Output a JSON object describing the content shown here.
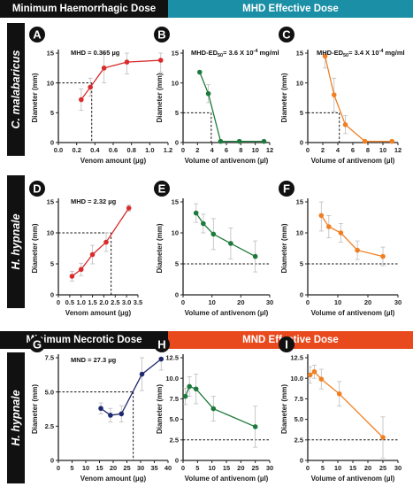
{
  "banners": {
    "top_left": "Minimum Haemorrhagic Dose",
    "top_right": "MHD Effective Dose",
    "mid_left": "Minimum Necrotic Dose",
    "mid_right": "MND Effective Dose"
  },
  "row_labels": {
    "row1": "C. malabaricus",
    "row2": "H. hypnale",
    "row3": "H. hypnale"
  },
  "colors": {
    "red": "#d92b2b",
    "green": "#1e7a3c",
    "orange": "#f07f23",
    "navy": "#1f2a6e",
    "teal": "#1a8fa6",
    "orange_red": "#e8491d",
    "black": "#111111"
  },
  "chart_data": [
    {
      "panel": "A",
      "type": "line",
      "color": "#d92b2b",
      "annotation": "MHD = 0.365 µg",
      "xlabel": "Venom amount (µg)",
      "ylabel": "Diameter (mm)",
      "xlim": [
        0,
        1.2
      ],
      "ylim": [
        0,
        15
      ],
      "xticks": [
        0,
        0.2,
        0.4,
        0.6,
        0.8,
        1.0,
        1.2
      ],
      "xticklabels": [
        "0.0",
        "0.2",
        "0.4",
        "0.6",
        "0.8",
        "1.0",
        "1.2"
      ],
      "yticks": [
        0,
        5,
        10,
        15
      ],
      "yticklabels": [
        "0",
        "5",
        "10",
        "15"
      ],
      "x": [
        0.25,
        0.35,
        0.5,
        0.75,
        1.12
      ],
      "y": [
        7.2,
        9.3,
        12.5,
        13.5,
        13.8
      ],
      "err": [
        1.8,
        1.5,
        2.5,
        2.0,
        2.0
      ],
      "ref": {
        "x": 0.365,
        "y": 10
      }
    },
    {
      "panel": "B",
      "type": "line",
      "color": "#1e7a3c",
      "annotation": "MHD-ED50= 3.6 X 10^-4 mg/ml",
      "xlabel": "Volume of antivenom (µl)",
      "ylabel": "Diameter (mm)",
      "xlim": [
        0,
        12
      ],
      "ylim": [
        0,
        15
      ],
      "xticks": [
        0,
        2,
        4,
        6,
        8,
        10,
        12
      ],
      "xticklabels": [
        "0",
        "2",
        "4",
        "6",
        "8",
        "10",
        "12"
      ],
      "yticks": [
        0,
        5,
        10,
        15
      ],
      "yticklabels": [
        "0",
        "5",
        "10",
        "15"
      ],
      "x": [
        2.3,
        3.5,
        5.2,
        7.8,
        11.2
      ],
      "y": [
        11.8,
        8.2,
        0.2,
        0.2,
        0.2
      ],
      "err": [
        0,
        1.5,
        0,
        0,
        0
      ],
      "ref": {
        "x": 3.9,
        "y": 5
      }
    },
    {
      "panel": "C",
      "type": "line",
      "color": "#f07f23",
      "annotation": "MHD-ED50= 3.4 X 10^-4 mg/ml",
      "xlabel": "Volume of antivenom (µl)",
      "ylabel": "Diameter (mm)",
      "xlim": [
        0,
        12
      ],
      "ylim": [
        0,
        15
      ],
      "xticks": [
        0,
        2,
        4,
        6,
        8,
        10,
        12
      ],
      "xticklabels": [
        "0",
        "2",
        "4",
        "6",
        "8",
        "10",
        "12"
      ],
      "yticks": [
        0,
        5,
        10,
        15
      ],
      "yticklabels": [
        "0",
        "5",
        "10",
        "15"
      ],
      "x": [
        2.3,
        3.5,
        5.0,
        7.6,
        11.2
      ],
      "y": [
        14.5,
        8.0,
        3.0,
        0.2,
        0.2
      ],
      "err": [
        2.0,
        2.8,
        1.5,
        0,
        0
      ],
      "ref": {
        "x": 4.2,
        "y": 5
      }
    },
    {
      "panel": "D",
      "type": "line",
      "color": "#d92b2b",
      "annotation": "MHD = 2.32 µg",
      "xlabel": "Venom amount (µg)",
      "ylabel": "Diameter (mm)",
      "xlim": [
        0,
        3.5
      ],
      "ylim": [
        0,
        15
      ],
      "xticks": [
        0,
        0.5,
        1.0,
        1.5,
        2.0,
        2.5,
        3.0,
        3.5
      ],
      "xticklabels": [
        "0",
        "0.5",
        "1.0",
        "1.5",
        "2.0",
        "2.5",
        "3.0",
        "3.5"
      ],
      "yticks": [
        0,
        5,
        10,
        15
      ],
      "yticklabels": [
        "0",
        "5",
        "10",
        "15"
      ],
      "x": [
        0.6,
        1.0,
        1.5,
        2.1,
        3.1
      ],
      "y": [
        3.0,
        4.1,
        6.5,
        8.5,
        14.0
      ],
      "err": [
        0.8,
        1.0,
        1.5,
        1.5,
        0.5
      ],
      "ref": {
        "x": 2.32,
        "y": 10
      }
    },
    {
      "panel": "E",
      "type": "line",
      "color": "#1e7a3c",
      "annotation": "",
      "xlabel": "Volume of antivenom (µl)",
      "ylabel": "Diameter (mm)",
      "xlim": [
        0,
        30
      ],
      "ylim": [
        0,
        15
      ],
      "xticks": [
        0,
        10,
        20,
        30
      ],
      "xticklabels": [
        "0",
        "10",
        "20",
        "30"
      ],
      "yticks": [
        0,
        5,
        10,
        15
      ],
      "yticklabels": [
        "0",
        "5",
        "10",
        "15"
      ],
      "x": [
        4.5,
        7.0,
        10.5,
        16.5,
        25.0
      ],
      "y": [
        13.2,
        11.5,
        9.8,
        8.3,
        6.2
      ],
      "err": [
        1.5,
        1.5,
        2.5,
        2.5,
        2.5
      ],
      "ref": {
        "y": 5
      }
    },
    {
      "panel": "F",
      "type": "line",
      "color": "#f07f23",
      "annotation": "",
      "xlabel": "Volume of antivenom (µl)",
      "ylabel": "Diameter (mm)",
      "xlim": [
        0,
        30
      ],
      "ylim": [
        0,
        15
      ],
      "xticks": [
        0,
        10,
        20,
        30
      ],
      "xticklabels": [
        "0",
        "10",
        "20",
        "30"
      ],
      "yticks": [
        0,
        5,
        10,
        15
      ],
      "yticklabels": [
        "0",
        "5",
        "10",
        "15"
      ],
      "x": [
        4.5,
        7.0,
        11.0,
        16.5,
        25.0
      ],
      "y": [
        12.8,
        11.0,
        10.0,
        7.2,
        6.2
      ],
      "err": [
        2.5,
        1.8,
        1.5,
        1.5,
        1.5
      ],
      "ref": {
        "y": 5
      }
    },
    {
      "panel": "G",
      "type": "line",
      "color": "#1f2a6e",
      "annotation": "MND = 27.3 µg",
      "xlabel": "Venom amount (µg)",
      "ylabel": "Diameter (mm)",
      "xlim": [
        0,
        40
      ],
      "ylim": [
        0,
        7.5
      ],
      "xticks": [
        0,
        5,
        10,
        15,
        20,
        25,
        30,
        35,
        40
      ],
      "xticklabels": [
        "0",
        "5",
        "10",
        "15",
        "20",
        "25",
        "30",
        "35",
        "40"
      ],
      "yticks": [
        0,
        2.5,
        5.0,
        7.5
      ],
      "yticklabels": [
        "0",
        "2.5",
        "5.0",
        "7.5"
      ],
      "x": [
        15.5,
        19.0,
        23.0,
        30.5,
        37.5
      ],
      "y": [
        3.8,
        3.3,
        3.4,
        6.3,
        7.4
      ],
      "err": [
        0.4,
        0.5,
        0.6,
        1.2,
        0.8
      ],
      "ref": {
        "x": 27.3,
        "y": 5
      }
    },
    {
      "panel": "H",
      "type": "line",
      "color": "#1e7a3c",
      "annotation": "",
      "xlabel": "Volume of antivenom (µl)",
      "ylabel": "Diameter (mm)",
      "xlim": [
        0,
        30
      ],
      "ylim": [
        0,
        12.5
      ],
      "xticks": [
        0,
        5,
        10,
        15,
        20,
        25,
        30
      ],
      "xticklabels": [
        "0",
        "5",
        "10",
        "15",
        "20",
        "25",
        "30"
      ],
      "yticks": [
        0,
        2.5,
        5.0,
        7.5,
        10.0,
        12.5
      ],
      "yticklabels": [
        "0",
        "2.5",
        "5.0",
        "7.5",
        "10.0",
        "12.5"
      ],
      "x": [
        0.8,
        2.2,
        4.5,
        10.5,
        25.0
      ],
      "y": [
        7.8,
        9.0,
        8.7,
        6.3,
        4.1
      ],
      "err": [
        1.0,
        1.2,
        1.8,
        1.5,
        2.5
      ],
      "ref": {
        "y": 2.5
      }
    },
    {
      "panel": "I",
      "type": "line",
      "color": "#f07f23",
      "annotation": "",
      "xlabel": "Volume of antivenom (µl)",
      "ylabel": "Diameter (mm)",
      "xlim": [
        0,
        30
      ],
      "ylim": [
        0,
        12.5
      ],
      "xticks": [
        0,
        5,
        10,
        15,
        20,
        25,
        30
      ],
      "xticklabels": [
        "0",
        "5",
        "10",
        "15",
        "20",
        "25",
        "30"
      ],
      "yticks": [
        0,
        2.5,
        5.0,
        7.5,
        10.0,
        12.5
      ],
      "yticklabels": [
        "0",
        "2.5",
        "5.0",
        "7.5",
        "10.0",
        "12.5"
      ],
      "x": [
        0.8,
        2.2,
        4.5,
        10.5,
        25.0
      ],
      "y": [
        10.4,
        10.8,
        9.9,
        8.1,
        2.8
      ],
      "err": [
        1.0,
        0.8,
        1.2,
        1.5,
        2.5
      ],
      "ref": {
        "y": 2.5
      }
    }
  ]
}
